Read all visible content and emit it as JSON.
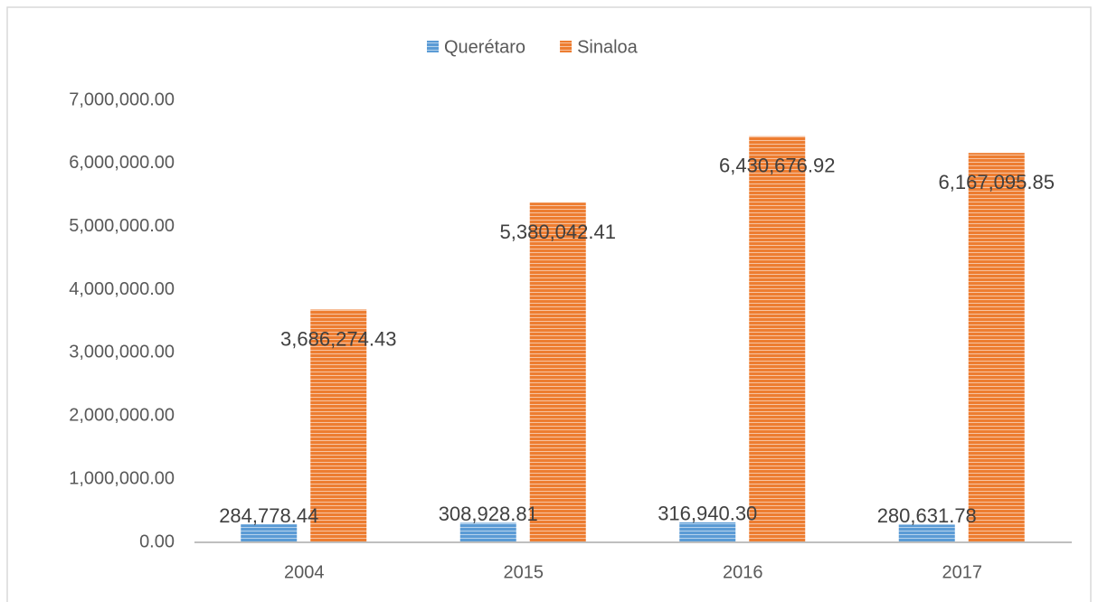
{
  "chart_data": {
    "type": "bar",
    "categories": [
      "2004",
      "2015",
      "2016",
      "2017"
    ],
    "series": [
      {
        "name": "Querétaro",
        "color": "#5b9bd5",
        "values": [
          284778.44,
          308928.81,
          316940.3,
          280631.78
        ],
        "value_labels": [
          "284,778.44",
          "308,928.81",
          "316,940.30",
          "280,631.78"
        ]
      },
      {
        "name": "Sinaloa",
        "color": "#ed7d31",
        "values": [
          3686274.43,
          5380042.41,
          6430676.92,
          6167095.85
        ],
        "value_labels": [
          "3,686,274.43",
          "5,380,042.41",
          "6,430,676.92",
          "6,167,095.85"
        ]
      }
    ],
    "ylim": [
      0,
      7000000
    ],
    "yticks": [
      {
        "value": 0,
        "label": "0.00"
      },
      {
        "value": 1000000,
        "label": "1,000,000.00"
      },
      {
        "value": 2000000,
        "label": "2,000,000.00"
      },
      {
        "value": 3000000,
        "label": "3,000,000.00"
      },
      {
        "value": 4000000,
        "label": "4,000,000.00"
      },
      {
        "value": 5000000,
        "label": "5,000,000.00"
      },
      {
        "value": 6000000,
        "label": "6,000,000.00"
      },
      {
        "value": 7000000,
        "label": "7,000,000.00"
      }
    ],
    "grid": false,
    "legend": "top",
    "pattern": "horizontal-stripes"
  }
}
